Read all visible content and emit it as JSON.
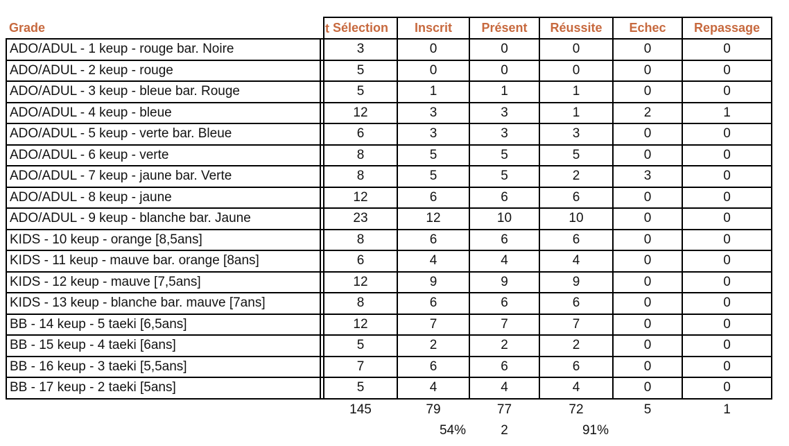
{
  "accent_color": "#C7693E",
  "border_color": "#000000",
  "chart_data": {
    "type": "table",
    "grade_header": "Grade",
    "cutoff_fragment": "t",
    "columns": [
      "Sélection",
      "Inscrit",
      "Présent",
      "Réussite",
      "Echec",
      "Repassage"
    ],
    "rows": [
      {
        "grade": "ADO/ADUL - 1 keup - rouge bar. Noire",
        "values": [
          3,
          0,
          0,
          0,
          0,
          0
        ]
      },
      {
        "grade": "ADO/ADUL - 2 keup - rouge",
        "values": [
          5,
          0,
          0,
          0,
          0,
          0
        ]
      },
      {
        "grade": "ADO/ADUL - 3 keup - bleue bar. Rouge",
        "values": [
          5,
          1,
          1,
          1,
          0,
          0
        ]
      },
      {
        "grade": "ADO/ADUL - 4 keup - bleue",
        "values": [
          12,
          3,
          3,
          1,
          2,
          1
        ]
      },
      {
        "grade": "ADO/ADUL - 5 keup - verte bar. Bleue",
        "values": [
          6,
          3,
          3,
          3,
          0,
          0
        ]
      },
      {
        "grade": "ADO/ADUL - 6 keup - verte",
        "values": [
          8,
          5,
          5,
          5,
          0,
          0
        ]
      },
      {
        "grade": "ADO/ADUL - 7 keup - jaune bar. Verte",
        "values": [
          8,
          5,
          5,
          2,
          3,
          0
        ]
      },
      {
        "grade": "ADO/ADUL - 8 keup - jaune",
        "values": [
          12,
          6,
          6,
          6,
          0,
          0
        ]
      },
      {
        "grade": "ADO/ADUL - 9 keup - blanche bar. Jaune",
        "values": [
          23,
          12,
          10,
          10,
          0,
          0
        ]
      },
      {
        "grade": "KIDS - 10 keup - orange [8,5ans]",
        "values": [
          8,
          6,
          6,
          6,
          0,
          0
        ]
      },
      {
        "grade": "KIDS - 11 keup - mauve bar. orange [8ans]",
        "values": [
          6,
          4,
          4,
          4,
          0,
          0
        ]
      },
      {
        "grade": "KIDS - 12 keup - mauve [7,5ans]",
        "values": [
          12,
          9,
          9,
          9,
          0,
          0
        ]
      },
      {
        "grade": "KIDS - 13 keup - blanche bar. mauve [7ans]",
        "values": [
          8,
          6,
          6,
          6,
          0,
          0
        ]
      },
      {
        "grade": "BB - 14 keup - 5 taeki [6,5ans]",
        "values": [
          12,
          7,
          7,
          7,
          0,
          0
        ]
      },
      {
        "grade": "BB - 15 keup - 4 taeki [6ans]",
        "values": [
          5,
          2,
          2,
          2,
          0,
          0
        ]
      },
      {
        "grade": "BB - 16 keup - 3 taeki [5,5ans]",
        "values": [
          7,
          6,
          6,
          6,
          0,
          0
        ]
      },
      {
        "grade": "BB - 17 keup - 2 taeki [5ans]",
        "values": [
          5,
          4,
          4,
          4,
          0,
          0
        ]
      }
    ],
    "totals": [
      145,
      79,
      77,
      72,
      5,
      1
    ],
    "summary": {
      "inscrit_rate": "54%",
      "present_diff": "2",
      "reussite_rate": "91%"
    }
  }
}
